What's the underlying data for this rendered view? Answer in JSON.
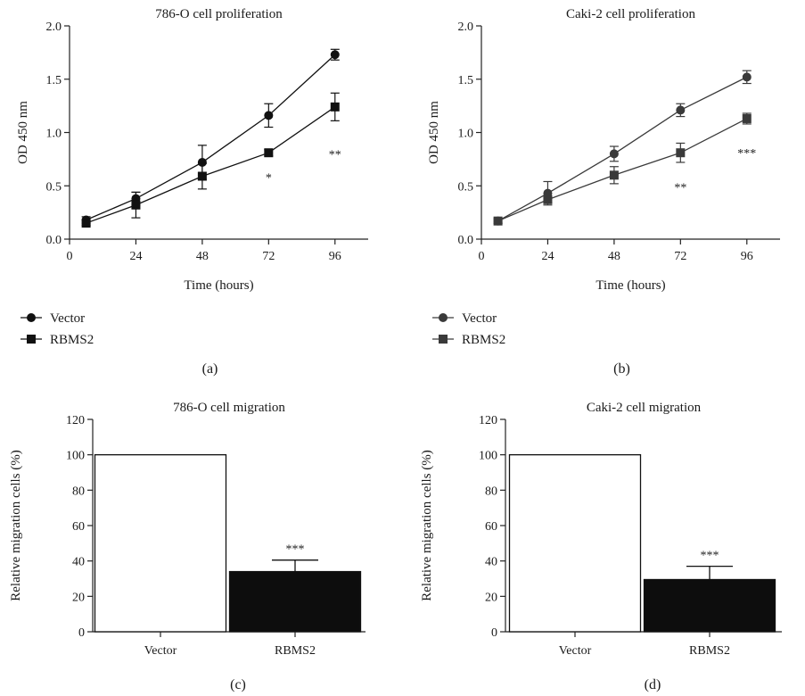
{
  "chart_data": [
    {
      "panel": "(a)",
      "type": "line",
      "title": "786-O cell proliferation",
      "xlabel": "Time (hours)",
      "ylabel": "OD 450 nm",
      "xlim": [
        0,
        108
      ],
      "ylim": [
        0,
        2.0
      ],
      "xticks": [
        0,
        24,
        48,
        72,
        96
      ],
      "xtick_labels": [
        "0",
        "24",
        "48",
        "72",
        "96"
      ],
      "yticks": [
        0,
        0.5,
        1.0,
        1.5,
        2.0
      ],
      "ytick_labels": [
        "0.0",
        "0.5",
        "1.0",
        "1.5",
        "2.0"
      ],
      "x": [
        6,
        24,
        48,
        72,
        96
      ],
      "series": [
        {
          "name": "Vector",
          "marker": "circle",
          "color": "#111111",
          "values": [
            0.18,
            0.38,
            0.72,
            1.16,
            1.73
          ],
          "errors": [
            0.03,
            0.06,
            0.16,
            0.11,
            0.05
          ]
        },
        {
          "name": "RBMS2",
          "marker": "square",
          "color": "#111111",
          "values": [
            0.15,
            0.32,
            0.59,
            0.81,
            1.24
          ],
          "errors": [
            0.02,
            0.12,
            0.12,
            0.03,
            0.13
          ]
        }
      ],
      "annotations": [
        {
          "x": 72,
          "y": 0.58,
          "text": "*"
        },
        {
          "x": 96,
          "y": 0.8,
          "text": "**"
        }
      ],
      "grid": false,
      "legend": "bottom-left, below axis"
    },
    {
      "panel": "(b)",
      "type": "line",
      "title": "Caki-2 cell proliferation",
      "xlabel": "Time (hours)",
      "ylabel": "OD 450 nm",
      "xlim": [
        0,
        108
      ],
      "ylim": [
        0,
        2.0
      ],
      "xticks": [
        0,
        24,
        48,
        72,
        96
      ],
      "xtick_labels": [
        "0",
        "24",
        "48",
        "72",
        "96"
      ],
      "yticks": [
        0,
        0.5,
        1.0,
        1.5,
        2.0
      ],
      "ytick_labels": [
        "0.0",
        "0.5",
        "1.0",
        "1.5",
        "2.0"
      ],
      "x": [
        6,
        24,
        48,
        72,
        96
      ],
      "series": [
        {
          "name": "Vector",
          "marker": "circle",
          "color": "#3a3a3a",
          "values": [
            0.17,
            0.43,
            0.8,
            1.21,
            1.52
          ],
          "errors": [
            0.02,
            0.11,
            0.07,
            0.06,
            0.06
          ]
        },
        {
          "name": "RBMS2",
          "marker": "square",
          "color": "#3a3a3a",
          "values": [
            0.17,
            0.37,
            0.6,
            0.81,
            1.13
          ],
          "errors": [
            0.02,
            0.03,
            0.08,
            0.09,
            0.05
          ]
        }
      ],
      "annotations": [
        {
          "x": 72,
          "y": 0.49,
          "text": "**"
        },
        {
          "x": 96,
          "y": 0.81,
          "text": "***"
        }
      ],
      "grid": false,
      "legend": "bottom-left, below axis"
    },
    {
      "panel": "(c)",
      "type": "bar",
      "title": "786-O cell migration",
      "ylabel": "Relative migration cells (%)",
      "xlabel": "",
      "categories": [
        "Vector",
        "RBMS2"
      ],
      "values": [
        100,
        34
      ],
      "errors": [
        0,
        6.5
      ],
      "fills": [
        "#ffffff",
        "#0d0d0d"
      ],
      "ylim": [
        0,
        120
      ],
      "yticks": [
        0,
        20,
        40,
        60,
        80,
        100,
        120
      ],
      "ytick_labels": [
        "0",
        "20",
        "40",
        "60",
        "80",
        "100",
        "120"
      ],
      "annotations": [
        {
          "category": "RBMS2",
          "text": "***"
        }
      ],
      "grid": false
    },
    {
      "panel": "(d)",
      "type": "bar",
      "title": "Caki-2 cell migration",
      "ylabel": "Relative migration cells (%)",
      "xlabel": "",
      "categories": [
        "Vector",
        "RBMS2"
      ],
      "values": [
        100,
        29.5
      ],
      "errors": [
        0,
        7.5
      ],
      "fills": [
        "#ffffff",
        "#0d0d0d"
      ],
      "ylim": [
        0,
        120
      ],
      "yticks": [
        0,
        20,
        40,
        60,
        80,
        100,
        120
      ],
      "ytick_labels": [
        "0",
        "20",
        "40",
        "60",
        "80",
        "100",
        "120"
      ],
      "annotations": [
        {
          "category": "RBMS2",
          "text": "***"
        }
      ],
      "grid": false
    }
  ]
}
